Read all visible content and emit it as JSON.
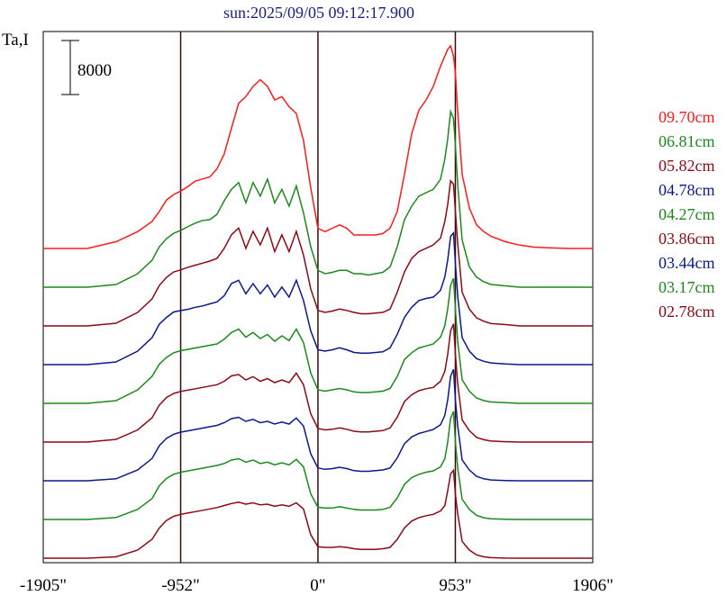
{
  "chart_data": {
    "type": "line",
    "title": "sun:2025/09/05 09:12:17.900",
    "ylabel": "Ta,I",
    "scale_bar_label": "8000",
    "scale_bar_value": 8000,
    "xlim": [
      -1905,
      1906
    ],
    "x_tick_labels": [
      "-1905\"",
      "-952\"",
      "0\"",
      "953\"",
      "1906\""
    ],
    "x_tick_values": [
      -1905,
      -952,
      0,
      953,
      1906
    ],
    "vertical_lines": [
      -952,
      0,
      953
    ],
    "x": [
      -1905,
      -1750,
      -1600,
      -1400,
      -1250,
      -1150,
      -1100,
      -1050,
      -1000,
      -952,
      -900,
      -850,
      -800,
      -750,
      -700,
      -650,
      -600,
      -550,
      -500,
      -450,
      -400,
      -350,
      -300,
      -250,
      -200,
      -150,
      -100,
      -50,
      0,
      50,
      100,
      150,
      200,
      250,
      300,
      350,
      400,
      450,
      500,
      550,
      600,
      650,
      700,
      750,
      800,
      850,
      880,
      900,
      920,
      940,
      953,
      970,
      1000,
      1050,
      1100,
      1150,
      1200,
      1300,
      1400,
      1500,
      1600,
      1750,
      1906
    ],
    "series": [
      {
        "name": "09.70cm",
        "color": "#ff1a1a",
        "baseline": 0,
        "values": [
          0,
          0,
          0,
          1000,
          2500,
          4000,
          5500,
          7200,
          8000,
          8500,
          9200,
          10000,
          10300,
          10600,
          11800,
          14000,
          17800,
          21500,
          22500,
          24000,
          25000,
          24000,
          22000,
          22500,
          21000,
          20000,
          16000,
          9000,
          3000,
          2500,
          3000,
          3500,
          3000,
          2000,
          2000,
          2000,
          2000,
          2200,
          3000,
          5500,
          11000,
          17000,
          20500,
          22000,
          24000,
          27000,
          28500,
          29500,
          30000,
          28500,
          26000,
          20000,
          11000,
          6000,
          3500,
          2500,
          1800,
          1000,
          500,
          200,
          100,
          0,
          0
        ]
      },
      {
        "name": "06.81cm",
        "color": "#1a8a1a",
        "baseline": 0,
        "values": [
          0,
          0,
          0,
          400,
          2000,
          4000,
          6000,
          7200,
          8000,
          8400,
          9000,
          9500,
          9900,
          10000,
          10800,
          12800,
          14500,
          15500,
          12500,
          15500,
          13500,
          16000,
          12500,
          14500,
          12000,
          15000,
          11000,
          6000,
          2500,
          2000,
          2200,
          2500,
          2500,
          2000,
          2000,
          1800,
          2000,
          2200,
          3000,
          6000,
          10000,
          12000,
          13500,
          14000,
          14500,
          16000,
          19000,
          22000,
          26000,
          25000,
          21000,
          15000,
          7000,
          3000,
          1500,
          800,
          400,
          200,
          0,
          0,
          0,
          0,
          0
        ]
      },
      {
        "name": "05.82cm",
        "color": "#8b0a14",
        "baseline": 0,
        "values": [
          0,
          0,
          0,
          400,
          2000,
          4000,
          6000,
          7200,
          8000,
          8300,
          8700,
          9000,
          9300,
          9600,
          10000,
          11500,
          13500,
          14500,
          11500,
          14000,
          12000,
          14500,
          11000,
          13500,
          11000,
          14000,
          10500,
          5500,
          2300,
          2000,
          2200,
          2500,
          2300,
          2000,
          1800,
          1800,
          1900,
          2000,
          2500,
          5000,
          8000,
          10000,
          11000,
          11500,
          12000,
          13000,
          15500,
          18000,
          21500,
          21000,
          17000,
          12000,
          5000,
          2500,
          1200,
          700,
          350,
          200,
          0,
          0,
          0,
          0,
          0
        ]
      },
      {
        "name": "04.78cm",
        "color": "#0a1a8b",
        "baseline": 0,
        "values": [
          0,
          0,
          0,
          400,
          2000,
          4000,
          6000,
          7000,
          7800,
          8000,
          8200,
          8500,
          8700,
          9000,
          9300,
          10200,
          12000,
          12500,
          10500,
          12000,
          10500,
          11800,
          10000,
          11500,
          10000,
          12500,
          9500,
          5000,
          2200,
          2000,
          2200,
          2500,
          2200,
          1800,
          1700,
          1700,
          1800,
          1900,
          2500,
          4500,
          7000,
          8500,
          9500,
          9800,
          10000,
          11000,
          13000,
          15500,
          19000,
          19500,
          15000,
          10000,
          4000,
          2000,
          900,
          500,
          250,
          100,
          0,
          0,
          0,
          0,
          0
        ]
      },
      {
        "name": "04.27cm",
        "color": "#1a8a1a",
        "baseline": 0,
        "values": [
          0,
          0,
          0,
          400,
          2000,
          4000,
          5800,
          6800,
          7500,
          7800,
          8000,
          8200,
          8400,
          8600,
          8800,
          9500,
          10500,
          11000,
          9800,
          10500,
          9600,
          10200,
          9200,
          10000,
          9300,
          11000,
          9000,
          4500,
          2000,
          1800,
          2000,
          2200,
          2000,
          1700,
          1600,
          1600,
          1700,
          1800,
          2200,
          4000,
          6500,
          7500,
          8200,
          8500,
          8800,
          9800,
          11500,
          14000,
          17500,
          18500,
          14000,
          9000,
          3500,
          1800,
          800,
          400,
          200,
          100,
          0,
          0,
          0,
          0,
          0
        ]
      },
      {
        "name": "03.86cm",
        "color": "#8b0a14",
        "baseline": 0,
        "values": [
          0,
          0,
          0,
          400,
          1800,
          3600,
          5500,
          6600,
          7200,
          7500,
          7700,
          7900,
          8100,
          8300,
          8500,
          9000,
          9800,
          10000,
          9200,
          9700,
          9000,
          9400,
          8800,
          9200,
          8800,
          10200,
          8500,
          4200,
          2000,
          1800,
          1900,
          2100,
          1900,
          1600,
          1500,
          1500,
          1600,
          1700,
          2100,
          3700,
          6000,
          7000,
          7600,
          7900,
          8100,
          9000,
          10500,
          13000,
          16500,
          17500,
          13000,
          8500,
          3300,
          1700,
          700,
          350,
          150,
          50,
          0,
          0,
          0,
          0,
          0
        ]
      },
      {
        "name": "03.44cm",
        "color": "#0a1a8b",
        "baseline": 0,
        "values": [
          0,
          0,
          0,
          300,
          1600,
          3300,
          5200,
          6300,
          6900,
          7200,
          7400,
          7600,
          7800,
          8000,
          8200,
          8600,
          9200,
          9400,
          8800,
          9100,
          8600,
          8800,
          8400,
          8700,
          8400,
          9300,
          8100,
          4000,
          1900,
          1700,
          1800,
          2000,
          1800,
          1500,
          1400,
          1400,
          1500,
          1600,
          1900,
          3400,
          5500,
          6500,
          7000,
          7300,
          7600,
          8300,
          9700,
          12000,
          15500,
          16500,
          12000,
          8000,
          3100,
          1600,
          650,
          300,
          120,
          40,
          0,
          0,
          0,
          0,
          0
        ]
      },
      {
        "name": "03.17cm",
        "color": "#1a8a1a",
        "baseline": 0,
        "values": [
          0,
          0,
          0,
          300,
          1500,
          3100,
          5000,
          6100,
          6700,
          7000,
          7200,
          7400,
          7600,
          7800,
          8000,
          8300,
          8800,
          9000,
          8500,
          8800,
          8300,
          8500,
          8100,
          8400,
          8100,
          8900,
          7800,
          3800,
          1800,
          1700,
          1700,
          1900,
          1700,
          1500,
          1400,
          1400,
          1400,
          1500,
          1800,
          3200,
          5200,
          6200,
          6700,
          7000,
          7200,
          7800,
          9000,
          11500,
          15000,
          16000,
          11500,
          7500,
          3000,
          1500,
          600,
          250,
          100,
          30,
          0,
          0,
          0,
          0,
          0
        ]
      },
      {
        "name": "02.78cm",
        "color": "#8b0a14",
        "baseline": 0,
        "values": [
          0,
          0,
          0,
          200,
          1200,
          2800,
          4500,
          5600,
          6200,
          6500,
          6700,
          6900,
          7100,
          7300,
          7500,
          7800,
          8100,
          8300,
          8000,
          8200,
          7900,
          8000,
          7700,
          7900,
          7700,
          8200,
          7300,
          3500,
          1700,
          1600,
          1600,
          1700,
          1600,
          1400,
          1300,
          1300,
          1300,
          1400,
          1600,
          2800,
          4500,
          5500,
          6000,
          6300,
          6500,
          7000,
          7800,
          10000,
          12500,
          13000,
          9500,
          6500,
          2500,
          1200,
          500,
          200,
          80,
          20,
          0,
          0,
          0,
          0,
          0
        ]
      }
    ]
  }
}
